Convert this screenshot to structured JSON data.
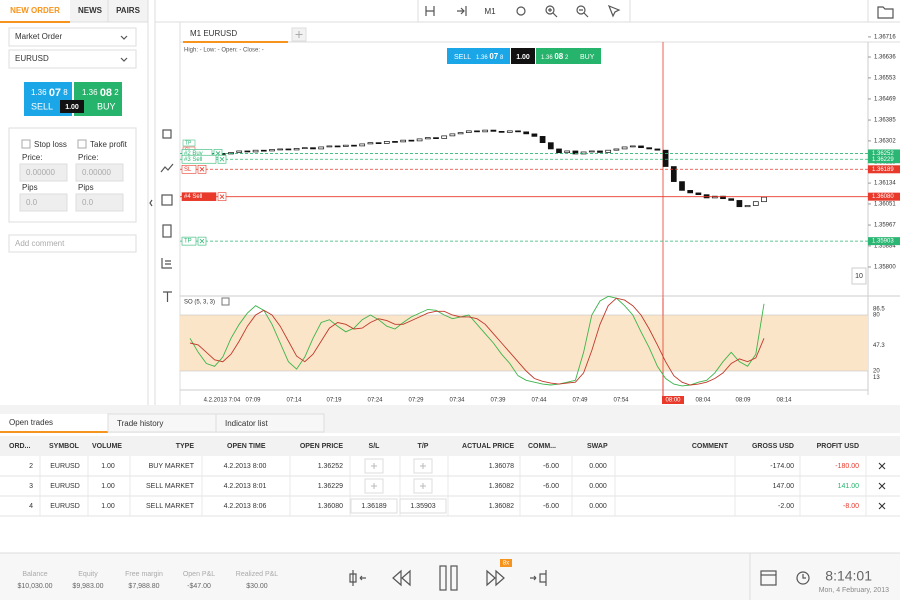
{
  "left_panel": {
    "tabs": [
      "NEW ORDER",
      "NEWS",
      "PAIRS"
    ],
    "order_type": "Market Order",
    "symbol": "EURUSD",
    "sell_label": "SELL",
    "buy_label": "BUY",
    "sell_price": [
      "1.36",
      "07",
      "8"
    ],
    "buy_price": [
      "1.36",
      "08",
      "2"
    ],
    "spread": "1.00",
    "stop_loss": "Stop loss",
    "take_profit": "Take profit",
    "price_label": "Price:",
    "pips_label": "Pips",
    "price_placeholder": "0.00000",
    "pips_placeholder": "0.0",
    "comment_placeholder": "Add comment"
  },
  "toolbar": {
    "timeframe": "M1"
  },
  "chart": {
    "tab": "M1 EURUSD",
    "ohlc": "High: - Low: - Open: - Close: -",
    "price_axis": [
      "1.36716",
      "1.36636",
      "1.36553",
      "1.36469",
      "1.36385",
      "1.36302",
      "1.36218",
      "1.36134",
      "1.36051",
      "1.35967",
      "1.35884",
      "1.35800"
    ],
    "order_buttons": [
      "TP",
      "SL"
    ],
    "orders": [
      {
        "tag": "#2 Buy",
        "price": "1.36252",
        "color": "#2bb673",
        "dashed": true
      },
      {
        "tag": "#3 Sell",
        "price": "1.36229",
        "color": "#2bb673",
        "dashed": true
      },
      {
        "tag": "SL",
        "price": "1.36189",
        "color": "#e8392b",
        "dashed": true
      },
      {
        "tag": "#4 Sell",
        "price": "1.36080",
        "color": "#e8392b",
        "dashed": false
      },
      {
        "tag": "TP",
        "price": "1.35903",
        "color": "#2bb673",
        "dashed": true
      }
    ],
    "time_axis": [
      "4.2.2013 7:04",
      "07:09",
      "07:14",
      "07:19",
      "07:24",
      "07:29",
      "07:34",
      "07:39",
      "07:44",
      "07:49",
      "07:54",
      "08:04",
      "08:09",
      "08:14"
    ],
    "crosshair_time": "08:00",
    "zoom": "10",
    "closes": [
      1.3624,
      1.36248,
      1.36245,
      1.36252,
      1.3625,
      1.36256,
      1.36262,
      1.36258,
      1.36265,
      1.36262,
      1.36268,
      1.3627,
      1.36266,
      1.36272,
      1.36275,
      1.3627,
      1.36278,
      1.36282,
      1.3628,
      1.36285,
      1.36282,
      1.3629,
      1.36295,
      1.36292,
      1.363,
      1.36298,
      1.36305,
      1.36302,
      1.3631,
      1.36315,
      1.36312,
      1.36322,
      1.3633,
      1.36335,
      1.36342,
      1.36338,
      1.36345,
      1.3634,
      1.36336,
      1.36342,
      1.36338,
      1.3633,
      1.3632,
      1.36295,
      1.3627,
      1.36255,
      1.36262,
      1.3625,
      1.36258,
      1.36262,
      1.36256,
      1.36265,
      1.3627,
      1.36278,
      1.36282,
      1.36275,
      1.3627,
      1.36265,
      1.362,
      1.3614,
      1.36105,
      1.36095,
      1.36088,
      1.36075,
      1.36082,
      1.36072,
      1.36065,
      1.3604,
      1.36045,
      1.3606,
      1.36078
    ],
    "oscillator": {
      "title": "SO (5, 3, 3)",
      "axis": [
        "86.5",
        "80",
        "47.3",
        "20",
        "13"
      ],
      "k": [
        55,
        40,
        28,
        25,
        35,
        55,
        70,
        82,
        90,
        85,
        70,
        50,
        30,
        22,
        35,
        55,
        72,
        75,
        68,
        62,
        66,
        75,
        80,
        75,
        68,
        65,
        72,
        78,
        82,
        86,
        85,
        80,
        76,
        78,
        80,
        70,
        60,
        50,
        38,
        28,
        15,
        10,
        8,
        6,
        5,
        6,
        8,
        10,
        40,
        80,
        95,
        100,
        98,
        90,
        80,
        62,
        45,
        25,
        12,
        6,
        4,
        5,
        8,
        10,
        18,
        30,
        40,
        30,
        25,
        38,
        92
      ],
      "d": [
        50,
        48,
        40,
        32,
        30,
        38,
        52,
        68,
        80,
        85,
        80,
        68,
        52,
        36,
        30,
        38,
        52,
        66,
        72,
        70,
        65,
        66,
        72,
        76,
        74,
        70,
        70,
        74,
        78,
        82,
        84,
        84,
        80,
        78,
        78,
        76,
        70,
        60,
        50,
        40,
        30,
        20,
        12,
        9,
        7,
        6,
        7,
        8,
        18,
        42,
        70,
        90,
        98,
        96,
        90,
        80,
        65,
        48,
        30,
        15,
        8,
        5,
        6,
        8,
        12,
        18,
        28,
        33,
        30,
        34,
        55
      ]
    }
  },
  "bottom_tabs": [
    "Open trades",
    "Trade history",
    "Indicator list"
  ],
  "table": {
    "columns": [
      "ORD...",
      "SYMBOL",
      "VOLUME",
      "TYPE",
      "OPEN TIME",
      "OPEN PRICE",
      "S/L",
      "T/P",
      "ACTUAL PRICE",
      "COMM...",
      "SWAP",
      "COMMENT",
      "GROSS USD",
      "PROFIT USD"
    ],
    "rows": [
      [
        "2",
        "EURUSD",
        "1.00",
        "BUY MARKET",
        "4.2.2013 8:00",
        "1.36252",
        null,
        null,
        "1.36078",
        "-6.00",
        "0.000",
        null,
        "-174.00",
        "-180.00"
      ],
      [
        "3",
        "EURUSD",
        "1.00",
        "SELL MARKET",
        "4.2.2013 8:01",
        "1.36229",
        null,
        null,
        "1.36082",
        "-6.00",
        "0.000",
        null,
        "147.00",
        "141.00"
      ],
      [
        "4",
        "EURUSD",
        "1.00",
        "SELL MARKET",
        "4.2.2013 8:06",
        "1.36080",
        "1.36189",
        "1.35903",
        "1.36082",
        "-6.00",
        "0.000",
        null,
        "-2.00",
        "-8.00"
      ]
    ]
  },
  "footer": {
    "stats": [
      {
        "label": "Balance",
        "value": "$10,030.00"
      },
      {
        "label": "Equity",
        "value": "$9,983.00"
      },
      {
        "label": "Free margin",
        "value": "$7,988.80"
      },
      {
        "label": "Open P&L",
        "value": "-$47.00"
      },
      {
        "label": "Realized P&L",
        "value": "$30.00"
      }
    ],
    "speed": "8x",
    "time": "8:14:01",
    "date": "Mon, 4 February, 2013"
  }
}
